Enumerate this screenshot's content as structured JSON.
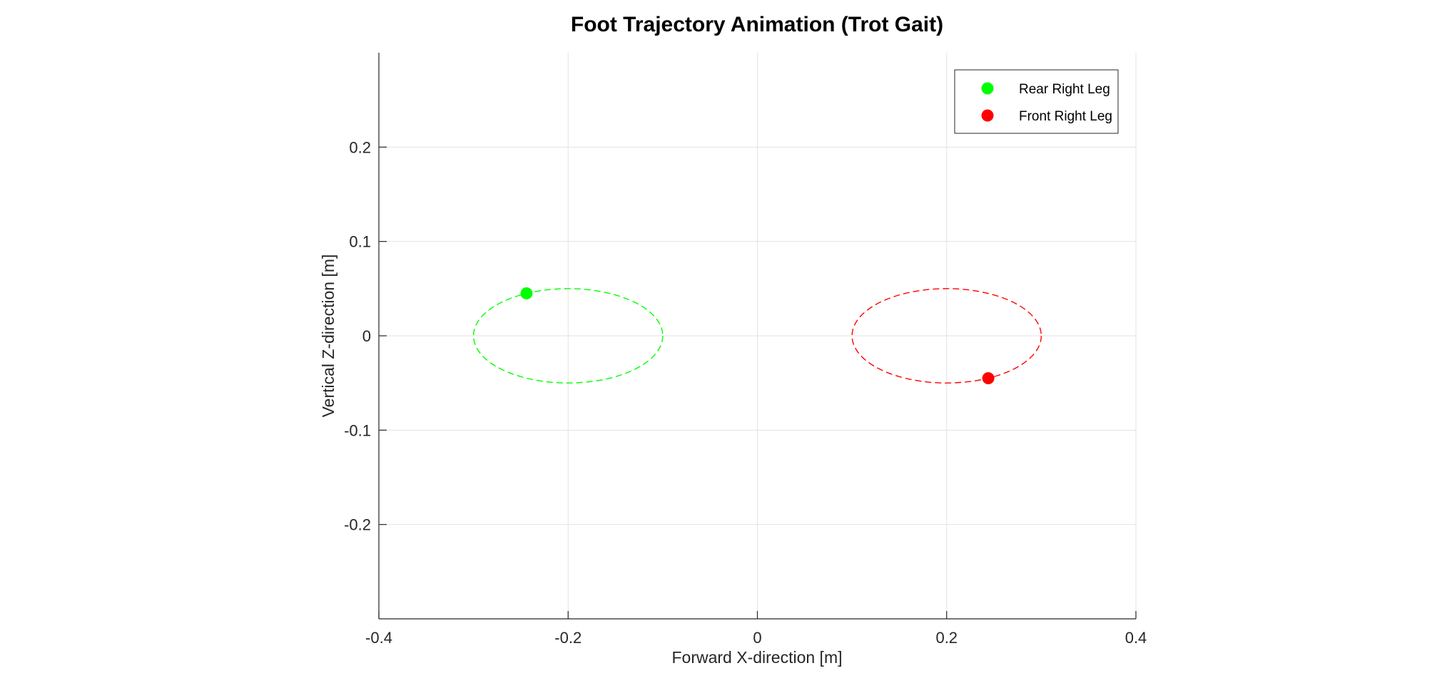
{
  "chart_data": {
    "type": "scatter",
    "title": "Foot Trajectory Animation (Trot Gait)",
    "xlabel": "Forward X-direction [m]",
    "ylabel": "Vertical Z-direction [m]",
    "xlim": [
      -0.4,
      0.4
    ],
    "ylim": [
      -0.3,
      0.3
    ],
    "xticks": [
      -0.4,
      -0.2,
      0,
      0.2,
      0.4
    ],
    "xtick_labels": [
      "-0.4",
      "-0.2",
      "0",
      "0.2",
      "0.4"
    ],
    "yticks": [
      -0.2,
      -0.1,
      0,
      0.1,
      0.2
    ],
    "ytick_labels": [
      "-0.2",
      "-0.1",
      "0",
      "0.1",
      "0.2"
    ],
    "grid": true,
    "legend_position": "top-right",
    "series": [
      {
        "name": "Rear Right Leg",
        "color": "#00ff00",
        "point": {
          "x": -0.244,
          "z": 0.045
        },
        "trajectory": {
          "center_x": -0.2,
          "center_z": 0.0,
          "radius_x": 0.1,
          "radius_z": 0.05,
          "style": "dashed"
        }
      },
      {
        "name": "Front Right Leg",
        "color": "#ff0000",
        "point": {
          "x": 0.244,
          "z": -0.045
        },
        "trajectory": {
          "center_x": 0.2,
          "center_z": 0.0,
          "radius_x": 0.1,
          "radius_z": 0.05,
          "style": "dashed"
        }
      }
    ]
  }
}
